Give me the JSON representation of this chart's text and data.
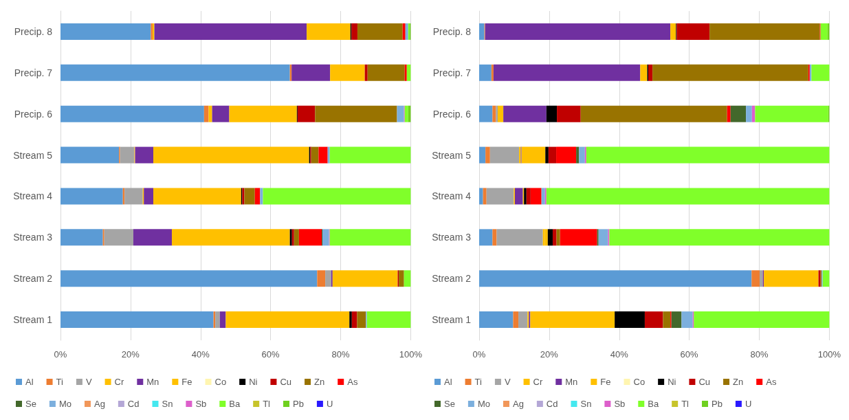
{
  "chart_data": [
    {
      "type": "bar",
      "stacked": true,
      "orientation": "horizontal",
      "grid": "x",
      "legend": "bottom",
      "categories": [
        "Precip. 8",
        "Precip. 7",
        "Precip. 6",
        "Stream 5",
        "Stream 4",
        "Stream 3",
        "Stream 2",
        "Stream 1"
      ],
      "xlim": [
        0,
        100
      ],
      "xticks": [
        {
          "value": 0,
          "label": "0%"
        },
        {
          "value": 20,
          "label": "20%"
        },
        {
          "value": 40,
          "label": "40%"
        },
        {
          "value": 60,
          "label": "60%"
        },
        {
          "value": 80,
          "label": "80%"
        },
        {
          "value": 100,
          "label": "100%"
        }
      ],
      "series": [
        {
          "name": "Al",
          "color": "#5b9bd5",
          "values": [
            25.8,
            65.5,
            41.0,
            16.7,
            17.8,
            12.1,
            73.3,
            43.7
          ]
        },
        {
          "name": "Ti",
          "color": "#ed7d31",
          "values": [
            0.5,
            0.5,
            1.3,
            0.3,
            0.5,
            0.4,
            2.3,
            0.5
          ]
        },
        {
          "name": "V",
          "color": "#a5a5a5",
          "values": [
            0,
            0,
            0,
            4.1,
            5.2,
            8.3,
            1.7,
            1.3
          ]
        },
        {
          "name": "Cr",
          "color": "#ffc000",
          "values": [
            0.5,
            0,
            1.0,
            0.2,
            0.3,
            0,
            0,
            0
          ]
        },
        {
          "name": "Mn",
          "color": "#7030a0",
          "values": [
            43.5,
            11.0,
            4.9,
            5.2,
            2.7,
            11.0,
            0.4,
            1.7
          ]
        },
        {
          "name": "Fe",
          "color": "#ffc000",
          "values": [
            12.5,
            9.9,
            19.3,
            44.5,
            25.1,
            33.7,
            18.6,
            35.3
          ]
        },
        {
          "name": "Co",
          "color": "#fff5b0",
          "values": [
            0,
            0,
            0,
            0,
            0,
            0,
            0,
            0
          ]
        },
        {
          "name": "Ni",
          "color": "#000000",
          "values": [
            0.3,
            0,
            0.2,
            0.3,
            0.3,
            0.6,
            0,
            0.7
          ]
        },
        {
          "name": "Cu",
          "color": "#c00000",
          "values": [
            1.7,
            0.8,
            5.0,
            0.3,
            0.6,
            0.6,
            0.3,
            1.5
          ]
        },
        {
          "name": "Zn",
          "color": "#997300",
          "values": [
            12.9,
            10.6,
            23.4,
            2.1,
            3.0,
            1.4,
            1.5,
            2.5
          ]
        },
        {
          "name": "As",
          "color": "#ff0000",
          "values": [
            0.8,
            0.6,
            0,
            2.6,
            1.5,
            6.5,
            0,
            0
          ]
        },
        {
          "name": "Se",
          "color": "#43682b",
          "values": [
            0,
            0,
            0,
            0,
            0,
            0.2,
            0,
            0
          ]
        },
        {
          "name": "Mo",
          "color": "#7cafdd",
          "values": [
            0.8,
            0,
            2.0,
            0.6,
            0.8,
            1.9,
            0,
            0.3
          ]
        },
        {
          "name": "Ag",
          "color": "#f1975a",
          "values": [
            0,
            0,
            0,
            0,
            0,
            0,
            0,
            0
          ]
        },
        {
          "name": "Cd",
          "color": "#b4a7d6",
          "values": [
            0,
            0,
            0,
            0,
            0,
            0,
            0,
            0
          ]
        },
        {
          "name": "Sn",
          "color": "#44e8ef",
          "values": [
            0,
            0,
            0,
            0,
            0,
            0,
            0,
            0
          ]
        },
        {
          "name": "Sb",
          "color": "#dd5fcb",
          "values": [
            0,
            0,
            0.2,
            0,
            0,
            0.2,
            0,
            0
          ]
        },
        {
          "name": "Ba",
          "color": "#80ff2a",
          "values": [
            0.4,
            1.1,
            1.0,
            23.1,
            42.2,
            23.1,
            1.9,
            12.5
          ]
        },
        {
          "name": "Tl",
          "color": "#c7c42b",
          "values": [
            0,
            0,
            0,
            0,
            0,
            0,
            0,
            0
          ]
        },
        {
          "name": "Pb",
          "color": "#70d020",
          "values": [
            0.3,
            0,
            0.7,
            0,
            0,
            0,
            0,
            0
          ]
        },
        {
          "name": "U",
          "color": "#2a1aff",
          "values": [
            0,
            0,
            0,
            0,
            0,
            0,
            0,
            0
          ]
        }
      ]
    },
    {
      "type": "bar",
      "stacked": true,
      "orientation": "horizontal",
      "grid": "x",
      "legend": "bottom",
      "categories": [
        "Precip. 8",
        "Precip. 7",
        "Precip. 6",
        "Stream 5",
        "Stream 4",
        "Stream 3",
        "Stream 2",
        "Stream 1"
      ],
      "xlim": [
        0,
        100
      ],
      "xticks": [
        {
          "value": 0,
          "label": "0%"
        },
        {
          "value": 20,
          "label": "20%"
        },
        {
          "value": 40,
          "label": "40%"
        },
        {
          "value": 60,
          "label": "60%"
        },
        {
          "value": 80,
          "label": "80%"
        },
        {
          "value": 100,
          "label": "100%"
        }
      ],
      "series": [
        {
          "name": "Al",
          "color": "#5b9bd5",
          "values": [
            1.5,
            3.5,
            3.8,
            1.8,
            1.1,
            3.8,
            77.8,
            9.7
          ]
        },
        {
          "name": "Ti",
          "color": "#ed7d31",
          "values": [
            0.2,
            0.6,
            1.0,
            1.3,
            1.0,
            1.2,
            2.3,
            1.5
          ]
        },
        {
          "name": "V",
          "color": "#a5a5a5",
          "values": [
            0,
            0,
            0.5,
            8.3,
            7.8,
            13.2,
            0.9,
            2.6
          ]
        },
        {
          "name": "Cr",
          "color": "#ffc000",
          "values": [
            0,
            0,
            1.6,
            0.5,
            0.3,
            0.5,
            0,
            0.4
          ]
        },
        {
          "name": "Mn",
          "color": "#7030a0",
          "values": [
            52.9,
            41.9,
            12.3,
            0.2,
            2.3,
            0,
            0.3,
            0.4
          ]
        },
        {
          "name": "Fe",
          "color": "#ffc000",
          "values": [
            1.6,
            2.0,
            0,
            6.8,
            0.3,
            0.9,
            15.6,
            24.1
          ]
        },
        {
          "name": "Co",
          "color": "#fff5b0",
          "values": [
            0,
            0,
            0,
            0,
            0,
            0,
            0,
            0
          ]
        },
        {
          "name": "Ni",
          "color": "#000000",
          "values": [
            0.2,
            0.3,
            3.0,
            0.9,
            0.7,
            1.4,
            0,
            8.6
          ]
        },
        {
          "name": "Cu",
          "color": "#c00000",
          "values": [
            9.4,
            1.2,
            6.8,
            2.2,
            1.2,
            1.1,
            0.6,
            5.2
          ]
        },
        {
          "name": "Zn",
          "color": "#997300",
          "values": [
            31.5,
            44.5,
            41.8,
            0,
            0,
            1.0,
            0.3,
            2.1
          ]
        },
        {
          "name": "As",
          "color": "#ff0000",
          "values": [
            0.2,
            0.4,
            1.0,
            5.7,
            3.1,
            10.6,
            0,
            0.3
          ]
        },
        {
          "name": "Se",
          "color": "#43682b",
          "values": [
            0,
            0,
            4.4,
            0.8,
            0,
            0.4,
            0,
            2.9
          ]
        },
        {
          "name": "Mo",
          "color": "#7cafdd",
          "values": [
            0,
            0.5,
            1.7,
            1.7,
            1.0,
            2.7,
            0.3,
            3.2
          ]
        },
        {
          "name": "Ag",
          "color": "#f1975a",
          "values": [
            0,
            0,
            0,
            0,
            0,
            0,
            0,
            0
          ]
        },
        {
          "name": "Cd",
          "color": "#b4a7d6",
          "values": [
            0,
            0,
            0,
            0,
            0,
            0,
            0,
            0
          ]
        },
        {
          "name": "Sn",
          "color": "#44e8ef",
          "values": [
            0,
            0,
            0,
            0,
            0,
            0,
            0,
            0
          ]
        },
        {
          "name": "Sb",
          "color": "#dd5fcb",
          "values": [
            0,
            0,
            0.9,
            0.4,
            0.4,
            0.4,
            0,
            0.3
          ]
        },
        {
          "name": "Ba",
          "color": "#80ff2a",
          "values": [
            2.0,
            5.1,
            20.9,
            69.4,
            80.8,
            62.8,
            1.9,
            38.7
          ]
        },
        {
          "name": "Tl",
          "color": "#c7c42b",
          "values": [
            0,
            0,
            0,
            0,
            0,
            0,
            0,
            0
          ]
        },
        {
          "name": "Pb",
          "color": "#70d020",
          "values": [
            0.5,
            0,
            0.3,
            0,
            0,
            0,
            0,
            0
          ]
        },
        {
          "name": "U",
          "color": "#2a1aff",
          "values": [
            0,
            0,
            0,
            0,
            0,
            0,
            0,
            0
          ]
        }
      ]
    }
  ]
}
